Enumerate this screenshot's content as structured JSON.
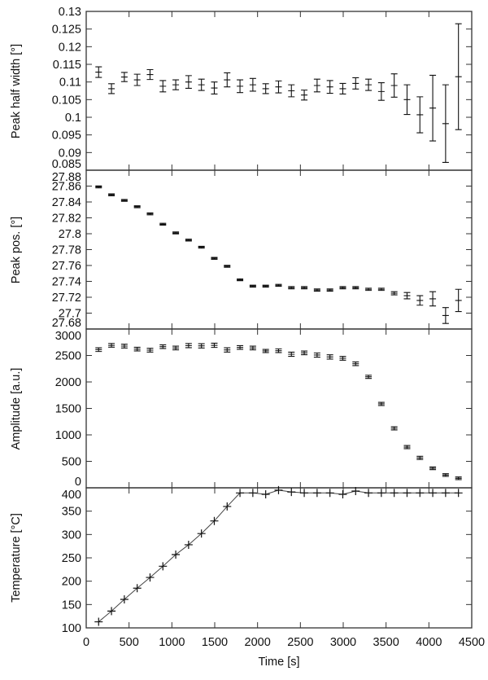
{
  "chart_data": [
    {
      "type": "scatter",
      "ylabel": "Peak half width [°]",
      "ylim": [
        0.085,
        0.13
      ],
      "yticks": [
        "0.085",
        "0.09",
        "0.095",
        "0.1",
        "0.105",
        "0.11",
        "0.115",
        "0.12",
        "0.125",
        "0.13"
      ],
      "xlim": [
        0,
        4500
      ],
      "error_bars": true,
      "x": [
        145,
        295,
        445,
        595,
        745,
        895,
        1045,
        1195,
        1345,
        1495,
        1645,
        1795,
        1945,
        2095,
        2245,
        2395,
        2545,
        2695,
        2845,
        2995,
        3145,
        3295,
        3445,
        3595,
        3745,
        3895,
        4045,
        4195,
        4345
      ],
      "values": [
        0.1128,
        0.1081,
        0.1114,
        0.1106,
        0.1121,
        0.1088,
        0.1092,
        0.11,
        0.1092,
        0.1083,
        0.1106,
        0.1088,
        0.1092,
        0.1081,
        0.1086,
        0.1075,
        0.1063,
        0.109,
        0.1086,
        0.1081,
        0.1096,
        0.1092,
        0.1073,
        0.109,
        0.105,
        0.1007,
        0.1026,
        0.0982,
        0.1115
      ],
      "errors": [
        0.0015,
        0.0014,
        0.0013,
        0.0016,
        0.0014,
        0.0016,
        0.0014,
        0.0018,
        0.0016,
        0.0017,
        0.002,
        0.0018,
        0.0018,
        0.0014,
        0.0017,
        0.0017,
        0.0014,
        0.0018,
        0.0018,
        0.0015,
        0.0016,
        0.0016,
        0.0025,
        0.0033,
        0.0042,
        0.0051,
        0.0093,
        0.011,
        0.015
      ]
    },
    {
      "type": "scatter",
      "ylabel": "Peak pos. [°]",
      "ylim": [
        27.68,
        27.88
      ],
      "yticks": [
        "27.68",
        "27.7",
        "27.72",
        "27.74",
        "27.76",
        "27.78",
        "27.8",
        "27.82",
        "27.84",
        "27.86",
        "27.88"
      ],
      "xlim": [
        0,
        4500
      ],
      "error_bars": true,
      "x": [
        145,
        295,
        445,
        595,
        745,
        895,
        1045,
        1195,
        1345,
        1495,
        1645,
        1795,
        1945,
        2095,
        2245,
        2395,
        2545,
        2695,
        2845,
        2995,
        3145,
        3295,
        3445,
        3595,
        3745,
        3895,
        4045,
        4195,
        4345
      ],
      "values": [
        27.859,
        27.849,
        27.842,
        27.834,
        27.825,
        27.812,
        27.801,
        27.792,
        27.783,
        27.769,
        27.759,
        27.742,
        27.734,
        27.734,
        27.735,
        27.732,
        27.732,
        27.729,
        27.729,
        27.732,
        27.732,
        27.73,
        27.73,
        27.725,
        27.722,
        27.716,
        27.718,
        27.697,
        27.716
      ],
      "errors": [
        0.0012,
        0.0012,
        0.0012,
        0.0012,
        0.0012,
        0.0012,
        0.0012,
        0.0012,
        0.0012,
        0.0012,
        0.0012,
        0.0012,
        0.0012,
        0.0012,
        0.0012,
        0.0014,
        0.0014,
        0.0014,
        0.0014,
        0.0014,
        0.0014,
        0.0014,
        0.0014,
        0.002,
        0.004,
        0.006,
        0.009,
        0.01,
        0.014
      ]
    },
    {
      "type": "scatter",
      "ylabel": "Amplitude [a.u.]",
      "ylim": [
        0,
        3000
      ],
      "yticks": [
        "0",
        "500",
        "1000",
        "1500",
        "2000",
        "2500",
        "3000"
      ],
      "xlim": [
        0,
        4500
      ],
      "error_bars": true,
      "x": [
        145,
        295,
        445,
        595,
        745,
        895,
        1045,
        1195,
        1345,
        1495,
        1645,
        1795,
        1945,
        2095,
        2245,
        2395,
        2545,
        2695,
        2845,
        2995,
        3145,
        3295,
        3445,
        3595,
        3745,
        3895,
        4045,
        4195,
        4345
      ],
      "values": [
        2610,
        2692,
        2677,
        2620,
        2600,
        2666,
        2641,
        2687,
        2682,
        2692,
        2605,
        2651,
        2641,
        2585,
        2590,
        2523,
        2549,
        2508,
        2472,
        2446,
        2343,
        2097,
        1585,
        1123,
        769,
        565,
        369,
        241,
        180
      ],
      "errors": [
        35,
        35,
        35,
        35,
        35,
        35,
        35,
        40,
        40,
        40,
        40,
        35,
        35,
        30,
        35,
        40,
        35,
        40,
        40,
        35,
        35,
        30,
        30,
        30,
        30,
        30,
        25,
        25,
        25
      ]
    },
    {
      "type": "line",
      "ylabel": "Temperature [°C]",
      "xlabel": "Time [s]",
      "ylim": [
        100,
        400
      ],
      "yticks": [
        "100",
        "150",
        "200",
        "250",
        "300",
        "350",
        "400"
      ],
      "xlim": [
        0,
        4500
      ],
      "xticks": [
        "0",
        "500",
        "1000",
        "1500",
        "2000",
        "2500",
        "3000",
        "3500",
        "4000",
        "4500"
      ],
      "markers": "plus",
      "x": [
        145,
        295,
        445,
        595,
        745,
        895,
        1045,
        1195,
        1345,
        1495,
        1645,
        1795,
        1945,
        2095,
        2245,
        2395,
        2545,
        2695,
        2845,
        2995,
        3145,
        3295,
        3445,
        3595,
        3745,
        3895,
        4045,
        4195,
        4345
      ],
      "values": [
        113,
        136,
        161,
        185,
        208,
        232,
        257,
        278,
        302,
        329,
        360,
        389,
        389,
        386,
        395,
        391,
        389,
        389,
        389,
        386,
        393,
        389,
        389,
        389,
        389,
        389,
        389,
        389,
        389
      ]
    }
  ],
  "colors": {
    "frame": "#333333",
    "marks": "#111111"
  }
}
